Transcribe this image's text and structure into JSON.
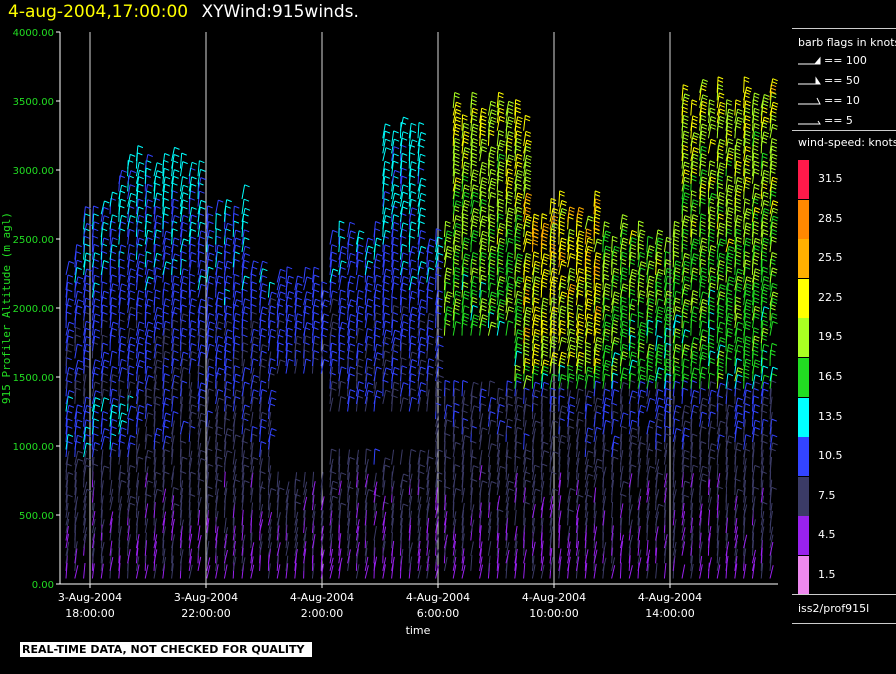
{
  "header": {
    "date": "4-aug-2004,17:00:00",
    "title": "XYWind:915winds."
  },
  "chart_data": {
    "type": "scatter",
    "title": "XYWind:915winds.",
    "ylabel": "915 Profiler Altitude (m agl)",
    "xlabel": "time",
    "ylim": [
      0,
      4000
    ],
    "y_ticks": [
      "0.00",
      "500.00",
      "1000.00",
      "1500.00",
      "2000.00",
      "2500.00",
      "3000.00",
      "3500.00",
      "4000.00"
    ],
    "x_ticks": [
      {
        "date": "3-Aug-2004",
        "time": "18:00:00"
      },
      {
        "date": "3-Aug-2004",
        "time": "22:00:00"
      },
      {
        "date": "4-Aug-2004",
        "time": "2:00:00"
      },
      {
        "date": "4-Aug-2004",
        "time": "6:00:00"
      },
      {
        "date": "4-Aug-2004",
        "time": "10:00:00"
      },
      {
        "date": "4-Aug-2004",
        "time": "14:00:00"
      }
    ],
    "grid": "vertical lines at time ticks",
    "series_note": "wind barbs colored by wind speed (knots)"
  },
  "legend": {
    "barb_title": "barb flags in knots",
    "barb_items": [
      "== 100",
      "== 50",
      "== 10",
      "== 5"
    ],
    "speed_title": "wind-speed: knots",
    "speed_levels": [
      {
        "label": "31.5",
        "color": "#ff1a4a"
      },
      {
        "label": "28.5",
        "color": "#ff8800"
      },
      {
        "label": "25.5",
        "color": "#ffb000"
      },
      {
        "label": "22.5",
        "color": "#ffff00"
      },
      {
        "label": "19.5",
        "color": "#aaff22"
      },
      {
        "label": "16.5",
        "color": "#22dd22"
      },
      {
        "label": "13.5",
        "color": "#00ffff"
      },
      {
        "label": "10.5",
        "color": "#3344ff"
      },
      {
        "label": "7.5",
        "color": "#3b3b66"
      },
      {
        "label": "4.5",
        "color": "#9922ee"
      },
      {
        "label": "1.5",
        "color": "#ee88ee"
      }
    ]
  },
  "footer": {
    "warning": "REAL-TIME DATA, NOT CHECKED FOR QUALITY",
    "source": "iss2/prof915l"
  }
}
